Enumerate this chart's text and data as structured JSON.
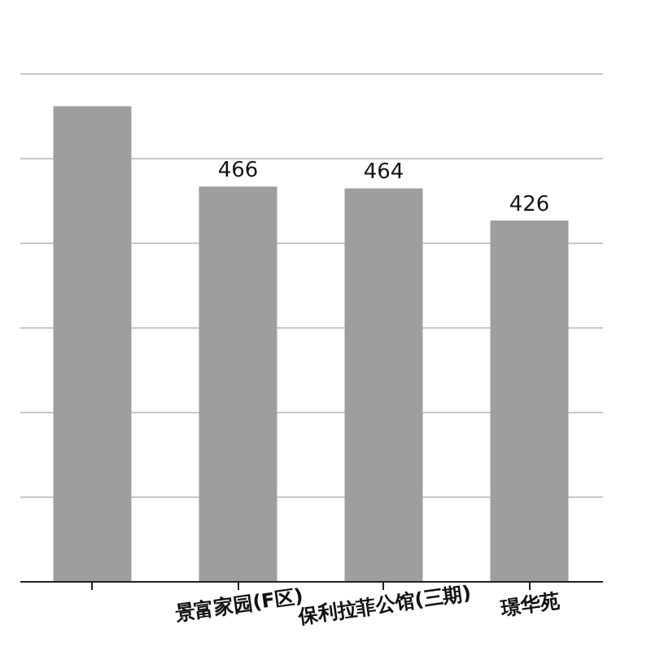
{
  "chart_data": {
    "type": "bar",
    "categories": [
      null,
      "景富家园(F区)",
      "保利拉菲公馆(三期)",
      "璟华苑"
    ],
    "values": [
      561,
      466,
      464,
      426
    ],
    "color": "#9e9e9e",
    "value_labels": [
      null,
      "466",
      "464",
      "426"
    ],
    "ylim": [
      0,
      600
    ],
    "yticks": [
      {
        "value": 0,
        "label": null
      },
      {
        "value": 100,
        "label": null
      },
      {
        "value": 200,
        "label": null
      },
      {
        "value": 300,
        "label": null
      },
      {
        "value": 400,
        "label": null
      },
      {
        "value": 500,
        "label": null
      },
      {
        "value": 600,
        "label": null
      }
    ],
    "grid": "y"
  }
}
